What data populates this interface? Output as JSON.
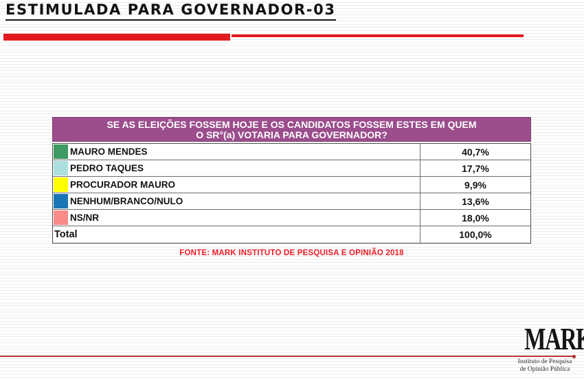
{
  "slide": {
    "title": "ESTIMULADA PARA GOVERNADOR-03",
    "source_note": "FONTE: MARK INSTITUTO DE PESQUISA E OPINIÃO 2018"
  },
  "poll_table": {
    "question_line1": "SE AS ELEIÇÕES FOSSEM HOJE E OS CANDIDATOS FOSSEM ESTES EM QUEM",
    "question_line2": "O SR°(a) VOTARIA PARA GOVERNADOR?",
    "rows": [
      {
        "label": "MAURO MENDES",
        "value": "40,7%",
        "swatch": "#3d9b63"
      },
      {
        "label": "PEDRO TAQUES",
        "value": "17,7%",
        "swatch": "#ace0de"
      },
      {
        "label": "PROCURADOR MAURO",
        "value": "9,9%",
        "swatch": "#ffff00"
      },
      {
        "label": "NENHUM/BRANCO/NULO",
        "value": "13,6%",
        "swatch": "#1b76b5"
      },
      {
        "label": "NS/NR",
        "value": "18,0%",
        "swatch": "#f98b8b"
      }
    ],
    "total_label": "Total",
    "total_value": "100,0%"
  },
  "logo": {
    "name": "MARK",
    "subtitle_line1": "Instituto de Pesquisa",
    "subtitle_line2": "de Opinião Pública"
  },
  "colors": {
    "accent_red_top": "#e21b1e",
    "header_purple": "#9b4d8c",
    "source_red": "#ee1c25",
    "footer_line_red": "#c13a3a"
  },
  "chart_data": {
    "type": "table",
    "title": "SE AS ELEIÇÕES FOSSEM HOJE E OS CANDIDATOS FOSSEM ESTES EM QUEM O SR°(a) VOTARIA PARA GOVERNADOR?",
    "categories": [
      "MAURO MENDES",
      "PEDRO TAQUES",
      "PROCURADOR MAURO",
      "NENHUM/BRANCO/NULO",
      "NS/NR"
    ],
    "values": [
      40.7,
      17.7,
      9.9,
      13.6,
      18.0
    ],
    "total": 100.0,
    "unit": "%",
    "source": "FONTE: MARK INSTITUTO DE PESQUISA E OPINIÃO 2018"
  }
}
